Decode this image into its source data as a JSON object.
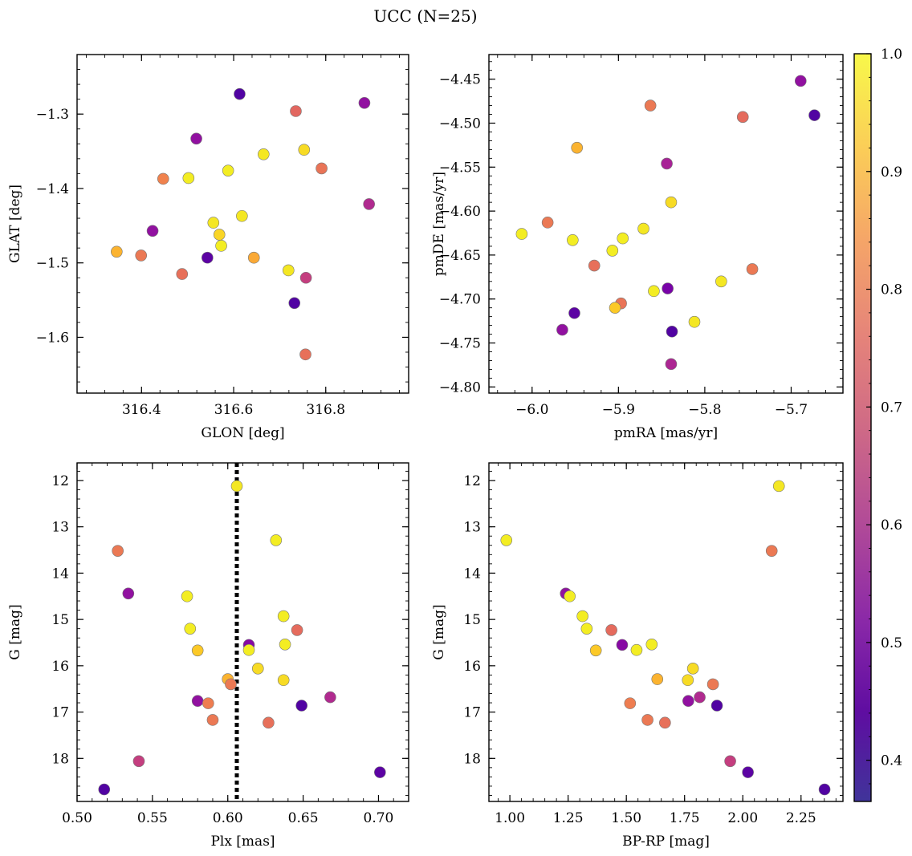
{
  "figure": {
    "title": "UCC (N=25)"
  },
  "colorbar": {
    "range": [
      0.365,
      1.0
    ],
    "ticks": [
      "1.0",
      "0.9",
      "0.8",
      "0.7",
      "0.6",
      "0.5",
      "0.4"
    ],
    "tick_values": [
      1.0,
      0.9,
      0.8,
      0.7,
      0.6,
      0.5,
      0.4
    ],
    "colormap": "plasma"
  },
  "chart_data": [
    {
      "type": "scatter",
      "xlabel": "GLON [deg]",
      "ylabel": "GLAT [deg]",
      "xlim": [
        316.26,
        316.98
      ],
      "ylim": [
        -1.675,
        -1.22
      ],
      "xticks": [
        316.4,
        316.6,
        316.8
      ],
      "xtick_labels": [
        "316.4",
        "316.6",
        "316.8"
      ],
      "yticks": [
        -1.3,
        -1.4,
        -1.5,
        -1.6
      ],
      "ytick_labels": [
        "−1.3",
        "−1.4",
        "−1.5",
        "−1.6"
      ],
      "x_minor_step": 0.04,
      "y_minor_step": 0.02,
      "y_inverted": false,
      "points": [
        {
          "x": 316.613,
          "y": -1.273,
          "c": 0.38
        },
        {
          "x": 316.735,
          "y": -1.296,
          "c": 0.72
        },
        {
          "x": 316.884,
          "y": -1.285,
          "c": 0.5
        },
        {
          "x": 316.519,
          "y": -1.333,
          "c": 0.5
        },
        {
          "x": 316.665,
          "y": -1.354,
          "c": 0.97
        },
        {
          "x": 316.753,
          "y": -1.348,
          "c": 0.95
        },
        {
          "x": 316.588,
          "y": -1.376,
          "c": 0.98
        },
        {
          "x": 316.447,
          "y": -1.387,
          "c": 0.78
        },
        {
          "x": 316.502,
          "y": -1.386,
          "c": 0.98
        },
        {
          "x": 316.791,
          "y": -1.373,
          "c": 0.75
        },
        {
          "x": 316.894,
          "y": -1.421,
          "c": 0.57
        },
        {
          "x": 316.618,
          "y": -1.437,
          "c": 0.97
        },
        {
          "x": 316.556,
          "y": -1.446,
          "c": 0.97
        },
        {
          "x": 316.424,
          "y": -1.457,
          "c": 0.5
        },
        {
          "x": 316.569,
          "y": -1.462,
          "c": 0.94
        },
        {
          "x": 316.573,
          "y": -1.477,
          "c": 0.98
        },
        {
          "x": 316.346,
          "y": -1.485,
          "c": 0.88
        },
        {
          "x": 316.399,
          "y": -1.49,
          "c": 0.76
        },
        {
          "x": 316.543,
          "y": -1.493,
          "c": 0.4
        },
        {
          "x": 316.644,
          "y": -1.493,
          "c": 0.86
        },
        {
          "x": 316.488,
          "y": -1.515,
          "c": 0.74
        },
        {
          "x": 316.719,
          "y": -1.51,
          "c": 0.97
        },
        {
          "x": 316.757,
          "y": -1.52,
          "c": 0.62
        },
        {
          "x": 316.732,
          "y": -1.554,
          "c": 0.38
        },
        {
          "x": 316.756,
          "y": -1.623,
          "c": 0.74
        }
      ]
    },
    {
      "type": "scatter",
      "xlabel": "pmRA [mas/yr]",
      "ylabel": "pmDE [mas/yr]",
      "xlim": [
        -6.05,
        -5.64
      ],
      "ylim": [
        -4.807,
        -4.422
      ],
      "xticks": [
        -6.0,
        -5.9,
        -5.8,
        -5.7
      ],
      "xtick_labels": [
        "−6.0",
        "−5.9",
        "−5.8",
        "−5.7"
      ],
      "yticks": [
        -4.45,
        -4.5,
        -4.55,
        -4.6,
        -4.65,
        -4.7,
        -4.75,
        -4.8
      ],
      "ytick_labels": [
        "−4.45",
        "−4.50",
        "−4.55",
        "−4.60",
        "−4.65",
        "−4.70",
        "−4.75",
        "−4.80"
      ],
      "x_minor_step": 0.02,
      "y_minor_step": 0.01,
      "y_inverted": false,
      "points": [
        {
          "x": -5.689,
          "y": -4.452,
          "c": 0.5
        },
        {
          "x": -5.673,
          "y": -4.491,
          "c": 0.38
        },
        {
          "x": -5.863,
          "y": -4.48,
          "c": 0.76
        },
        {
          "x": -5.756,
          "y": -4.493,
          "c": 0.73
        },
        {
          "x": -5.948,
          "y": -4.528,
          "c": 0.88
        },
        {
          "x": -5.844,
          "y": -4.546,
          "c": 0.55
        },
        {
          "x": -5.839,
          "y": -4.59,
          "c": 0.95
        },
        {
          "x": -6.012,
          "y": -4.626,
          "c": 0.98
        },
        {
          "x": -5.982,
          "y": -4.613,
          "c": 0.76
        },
        {
          "x": -5.953,
          "y": -4.633,
          "c": 0.98
        },
        {
          "x": -5.895,
          "y": -4.631,
          "c": 0.98
        },
        {
          "x": -5.907,
          "y": -4.645,
          "c": 0.98
        },
        {
          "x": -5.871,
          "y": -4.62,
          "c": 0.97
        },
        {
          "x": -5.928,
          "y": -4.662,
          "c": 0.74
        },
        {
          "x": -5.781,
          "y": -4.68,
          "c": 0.97
        },
        {
          "x": -5.745,
          "y": -4.666,
          "c": 0.76
        },
        {
          "x": -5.843,
          "y": -4.688,
          "c": 0.45
        },
        {
          "x": -5.859,
          "y": -4.691,
          "c": 0.98
        },
        {
          "x": -5.897,
          "y": -4.705,
          "c": 0.75
        },
        {
          "x": -5.904,
          "y": -4.71,
          "c": 0.92
        },
        {
          "x": -5.951,
          "y": -4.716,
          "c": 0.4
        },
        {
          "x": -5.965,
          "y": -4.735,
          "c": 0.5
        },
        {
          "x": -5.812,
          "y": -4.726,
          "c": 0.97
        },
        {
          "x": -5.838,
          "y": -4.737,
          "c": 0.38
        },
        {
          "x": -5.839,
          "y": -4.774,
          "c": 0.56
        }
      ]
    },
    {
      "type": "scatter",
      "xlabel": "Plx [mas]",
      "ylabel": "G [mag]",
      "xlim": [
        0.5,
        0.72
      ],
      "ylim": [
        18.93,
        11.62
      ],
      "xticks": [
        0.5,
        0.55,
        0.6,
        0.65,
        0.7
      ],
      "xtick_labels": [
        "0.50",
        "0.55",
        "0.60",
        "0.65",
        "0.70"
      ],
      "yticks": [
        12,
        13,
        14,
        15,
        16,
        17,
        18
      ],
      "ytick_labels": [
        "12",
        "13",
        "14",
        "15",
        "16",
        "17",
        "18"
      ],
      "x_minor_step": 0.01,
      "y_minor_step": 0.2,
      "y_inverted": true,
      "vline": 0.606,
      "points": [
        {
          "x": 0.606,
          "y": 12.12,
          "c": 0.97
        },
        {
          "x": 0.632,
          "y": 13.29,
          "c": 0.98
        },
        {
          "x": 0.527,
          "y": 13.52,
          "c": 0.76
        },
        {
          "x": 0.534,
          "y": 14.44,
          "c": 0.5
        },
        {
          "x": 0.573,
          "y": 14.5,
          "c": 0.98
        },
        {
          "x": 0.637,
          "y": 14.93,
          "c": 0.98
        },
        {
          "x": 0.575,
          "y": 15.2,
          "c": 0.98
        },
        {
          "x": 0.646,
          "y": 15.23,
          "c": 0.73
        },
        {
          "x": 0.614,
          "y": 15.55,
          "c": 0.48
        },
        {
          "x": 0.638,
          "y": 15.54,
          "c": 0.98
        },
        {
          "x": 0.614,
          "y": 15.66,
          "c": 0.98
        },
        {
          "x": 0.58,
          "y": 15.67,
          "c": 0.92
        },
        {
          "x": 0.62,
          "y": 16.06,
          "c": 0.95
        },
        {
          "x": 0.6,
          "y": 16.29,
          "c": 0.88
        },
        {
          "x": 0.637,
          "y": 16.31,
          "c": 0.95
        },
        {
          "x": 0.602,
          "y": 16.4,
          "c": 0.76
        },
        {
          "x": 0.668,
          "y": 16.68,
          "c": 0.57
        },
        {
          "x": 0.58,
          "y": 16.76,
          "c": 0.5
        },
        {
          "x": 0.587,
          "y": 16.81,
          "c": 0.77
        },
        {
          "x": 0.649,
          "y": 16.86,
          "c": 0.38
        },
        {
          "x": 0.59,
          "y": 17.17,
          "c": 0.76
        },
        {
          "x": 0.627,
          "y": 17.23,
          "c": 0.74
        },
        {
          "x": 0.541,
          "y": 18.06,
          "c": 0.62
        },
        {
          "x": 0.701,
          "y": 18.3,
          "c": 0.4
        },
        {
          "x": 0.518,
          "y": 18.67,
          "c": 0.38
        }
      ]
    },
    {
      "type": "scatter",
      "xlabel": "BP-RP [mag]",
      "ylabel": "G [mag]",
      "xlim": [
        0.91,
        2.43
      ],
      "ylim": [
        18.93,
        11.62
      ],
      "xticks": [
        1.0,
        1.25,
        1.5,
        1.75,
        2.0,
        2.25
      ],
      "xtick_labels": [
        "1.00",
        "1.25",
        "1.50",
        "1.75",
        "2.00",
        "2.25"
      ],
      "yticks": [
        12,
        13,
        14,
        15,
        16,
        17,
        18
      ],
      "ytick_labels": [
        "12",
        "13",
        "14",
        "15",
        "16",
        "17",
        "18"
      ],
      "x_minor_step": 0.05,
      "y_minor_step": 0.2,
      "y_inverted": true,
      "points": [
        {
          "x": 2.155,
          "y": 12.12,
          "c": 0.97
        },
        {
          "x": 0.985,
          "y": 13.29,
          "c": 0.98
        },
        {
          "x": 2.124,
          "y": 13.52,
          "c": 0.76
        },
        {
          "x": 1.24,
          "y": 14.44,
          "c": 0.5
        },
        {
          "x": 1.257,
          "y": 14.5,
          "c": 0.98
        },
        {
          "x": 1.312,
          "y": 14.93,
          "c": 0.98
        },
        {
          "x": 1.33,
          "y": 15.2,
          "c": 0.98
        },
        {
          "x": 1.436,
          "y": 15.23,
          "c": 0.73
        },
        {
          "x": 1.482,
          "y": 15.55,
          "c": 0.48
        },
        {
          "x": 1.609,
          "y": 15.54,
          "c": 0.98
        },
        {
          "x": 1.544,
          "y": 15.66,
          "c": 0.98
        },
        {
          "x": 1.369,
          "y": 15.67,
          "c": 0.92
        },
        {
          "x": 1.786,
          "y": 16.06,
          "c": 0.95
        },
        {
          "x": 1.633,
          "y": 16.29,
          "c": 0.88
        },
        {
          "x": 1.764,
          "y": 16.31,
          "c": 0.95
        },
        {
          "x": 1.872,
          "y": 16.4,
          "c": 0.76
        },
        {
          "x": 1.815,
          "y": 16.68,
          "c": 0.57
        },
        {
          "x": 1.766,
          "y": 16.76,
          "c": 0.5
        },
        {
          "x": 1.516,
          "y": 16.81,
          "c": 0.77
        },
        {
          "x": 1.889,
          "y": 16.86,
          "c": 0.38
        },
        {
          "x": 1.591,
          "y": 17.17,
          "c": 0.76
        },
        {
          "x": 1.666,
          "y": 17.23,
          "c": 0.74
        },
        {
          "x": 1.946,
          "y": 18.06,
          "c": 0.62
        },
        {
          "x": 2.022,
          "y": 18.3,
          "c": 0.4
        },
        {
          "x": 2.351,
          "y": 18.67,
          "c": 0.38
        }
      ]
    }
  ]
}
